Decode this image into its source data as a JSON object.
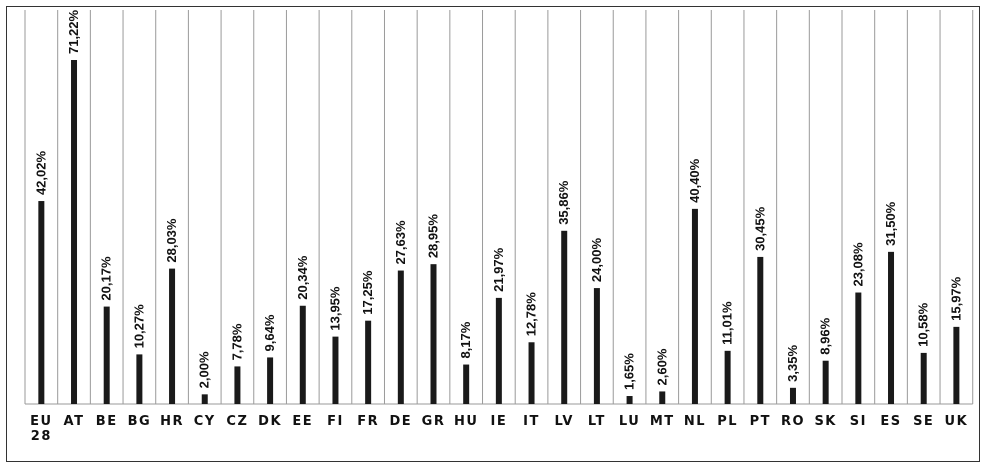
{
  "chart_data": {
    "type": "bar",
    "categories": [
      "EU 28",
      "AT",
      "BE",
      "BG",
      "HR",
      "CY",
      "CZ",
      "DK",
      "EE",
      "FI",
      "FR",
      "DE",
      "GR",
      "HU",
      "IE",
      "IT",
      "LV",
      "LT",
      "LU",
      "MT",
      "NL",
      "PL",
      "PT",
      "RO",
      "SK",
      "SI",
      "ES",
      "SE",
      "UK"
    ],
    "values": [
      42.02,
      71.22,
      20.17,
      10.27,
      28.03,
      2.0,
      7.78,
      9.64,
      20.34,
      13.95,
      17.25,
      27.63,
      28.95,
      8.17,
      21.97,
      12.78,
      35.86,
      24.0,
      1.65,
      2.6,
      40.4,
      11.01,
      30.45,
      3.35,
      8.96,
      23.08,
      31.5,
      10.58,
      15.97
    ],
    "labels": [
      "42,02%",
      "71,22%",
      "20,17%",
      "10,27%",
      "28,03%",
      "2,00%",
      "7,78%",
      "9,64%",
      "20,34%",
      "13,95%",
      "17,25%",
      "27,63%",
      "28,95%",
      "8,17%",
      "21,97%",
      "12,78%",
      "35,86%",
      "24,00%",
      "1,65%",
      "2,60%",
      "40,40%",
      "11,01%",
      "30,45%",
      "3,35%",
      "8,96%",
      "23,08%",
      "31,50%",
      "10,58%",
      "15,97%"
    ],
    "ylim": [
      0,
      80
    ],
    "grid": "vertical-between-categories",
    "legend": "none",
    "colors": {
      "bar": "#1a1a1a",
      "grid": "#9a9a9a"
    }
  }
}
